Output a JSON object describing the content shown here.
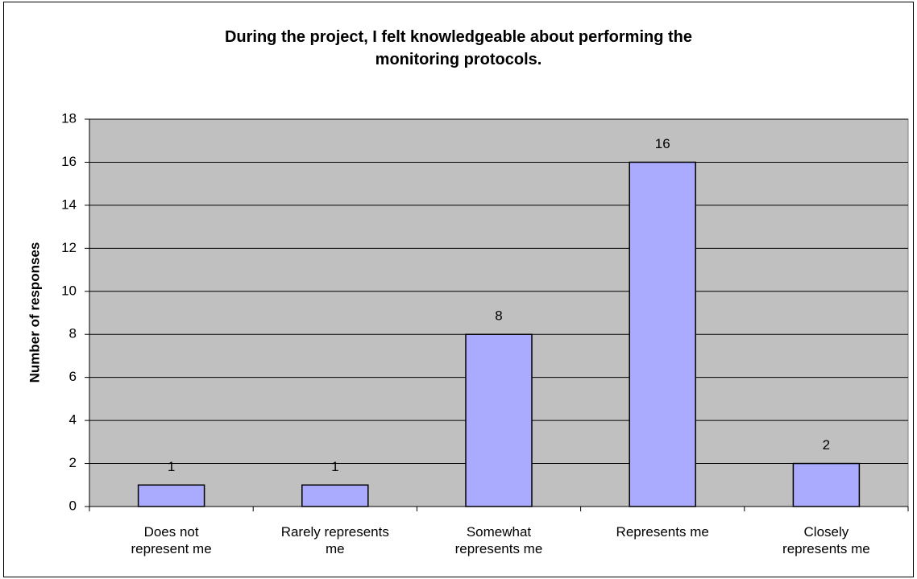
{
  "chart_data": {
    "type": "bar",
    "title": "During the project, I felt knowledgeable about performing the\nmonitoring protocols.",
    "y_label": "Number of responses",
    "categories": [
      "Does not\nrepresent me",
      "Rarely represents\nme",
      "Somewhat\nrepresents me",
      "Represents me",
      "Closely\nrepresents me"
    ],
    "values": [
      1,
      1,
      8,
      16,
      2
    ],
    "color": "#aaaaff",
    "plot_background": "#c0c0c0",
    "ylim": [
      0,
      18
    ],
    "yticks": [
      0,
      2,
      4,
      6,
      8,
      10,
      12,
      14,
      16,
      18
    ],
    "grid": true
  }
}
